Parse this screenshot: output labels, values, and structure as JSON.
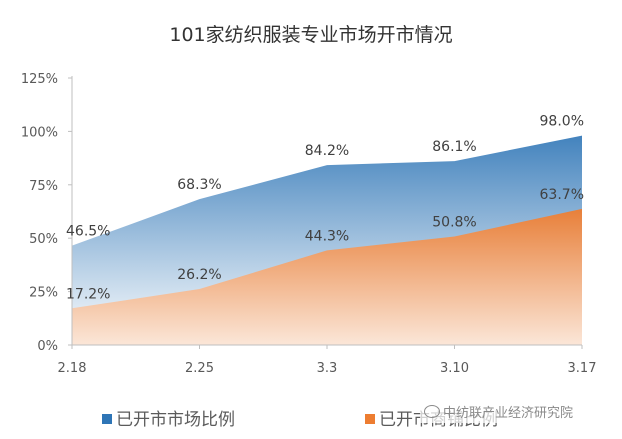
{
  "chart_data": {
    "type": "area",
    "title": "101家纺织服装专业市场开市情况",
    "categories": [
      "2.18",
      "2.25",
      "3.3",
      "3.10",
      "3.17"
    ],
    "series": [
      {
        "name": "已开市市场比例",
        "values": [
          46.5,
          68.3,
          84.2,
          86.1,
          98.0
        ],
        "labels": [
          "46.5%",
          "68.3%",
          "84.2%",
          "86.1%",
          "98.0%"
        ],
        "color_top": "#2e75b6",
        "color_bottom": "#ffffff"
      },
      {
        "name": "已开市商铺比例",
        "values": [
          17.2,
          26.2,
          44.3,
          50.8,
          63.7
        ],
        "labels": [
          "17.2%",
          "26.2%",
          "44.3%",
          "50.8%",
          "63.7%"
        ],
        "color_top": "#ed7d31",
        "color_bottom": "#fbe5d6"
      }
    ],
    "yticks": [
      "0%",
      "25%",
      "50%",
      "75%",
      "100%",
      "125%"
    ],
    "ylim": [
      0,
      125
    ],
    "grid": false,
    "legend_position": "bottom"
  },
  "watermark": {
    "text": "中纺联产业经济研究院",
    "icon": "wechat-icon"
  }
}
